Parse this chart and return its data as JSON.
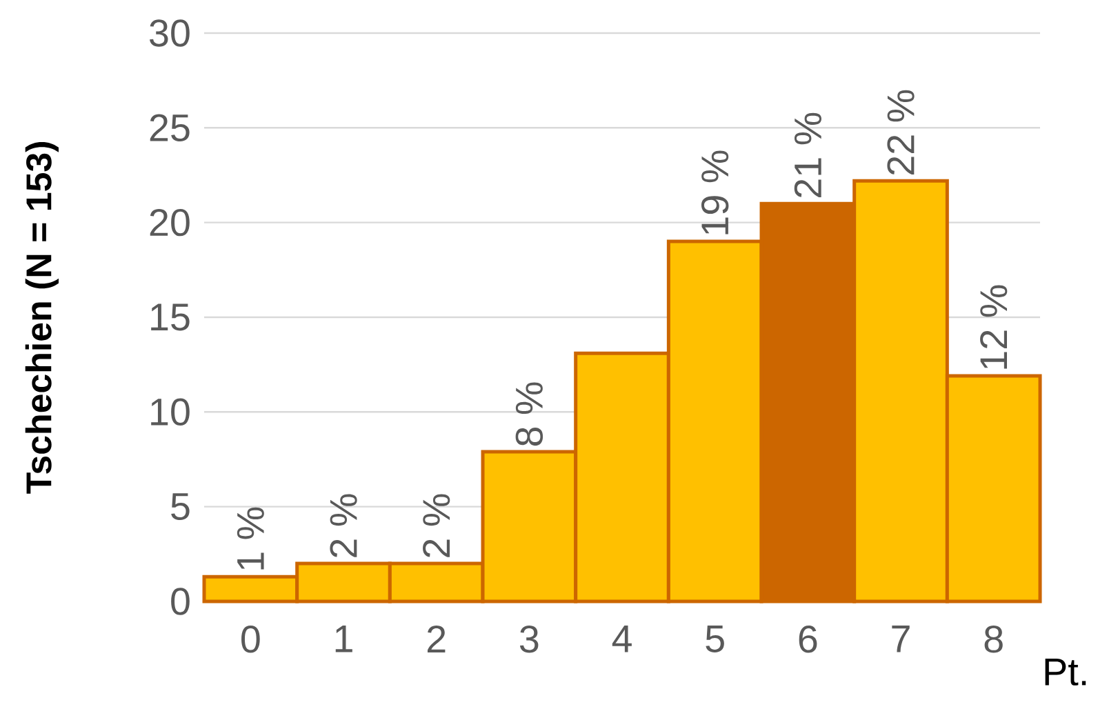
{
  "chart_data": {
    "type": "bar",
    "ylabel": "Tschechien (N = 153)",
    "xlabel": "Pt.",
    "categories": [
      "0",
      "1",
      "2",
      "3",
      "4",
      "5",
      "6",
      "7",
      "8"
    ],
    "values": [
      1.3,
      2.0,
      2.0,
      7.9,
      13.1,
      19.0,
      21.0,
      22.2,
      11.9
    ],
    "colors": [
      "#ffc000",
      "#ffc000",
      "#ffc000",
      "#ffc000",
      "#ffc000",
      "#ffc000",
      "#cc6600",
      "#ffc000",
      "#ffc000"
    ],
    "value_labels": [
      "1 %",
      "2 %",
      "2 %",
      "8 %",
      null,
      "19 %",
      "21 %",
      "22 %",
      "12 %"
    ],
    "ylim": [
      0,
      30
    ],
    "yticks": [
      0,
      5,
      10,
      15,
      20,
      25,
      30
    ],
    "grid": "y"
  }
}
